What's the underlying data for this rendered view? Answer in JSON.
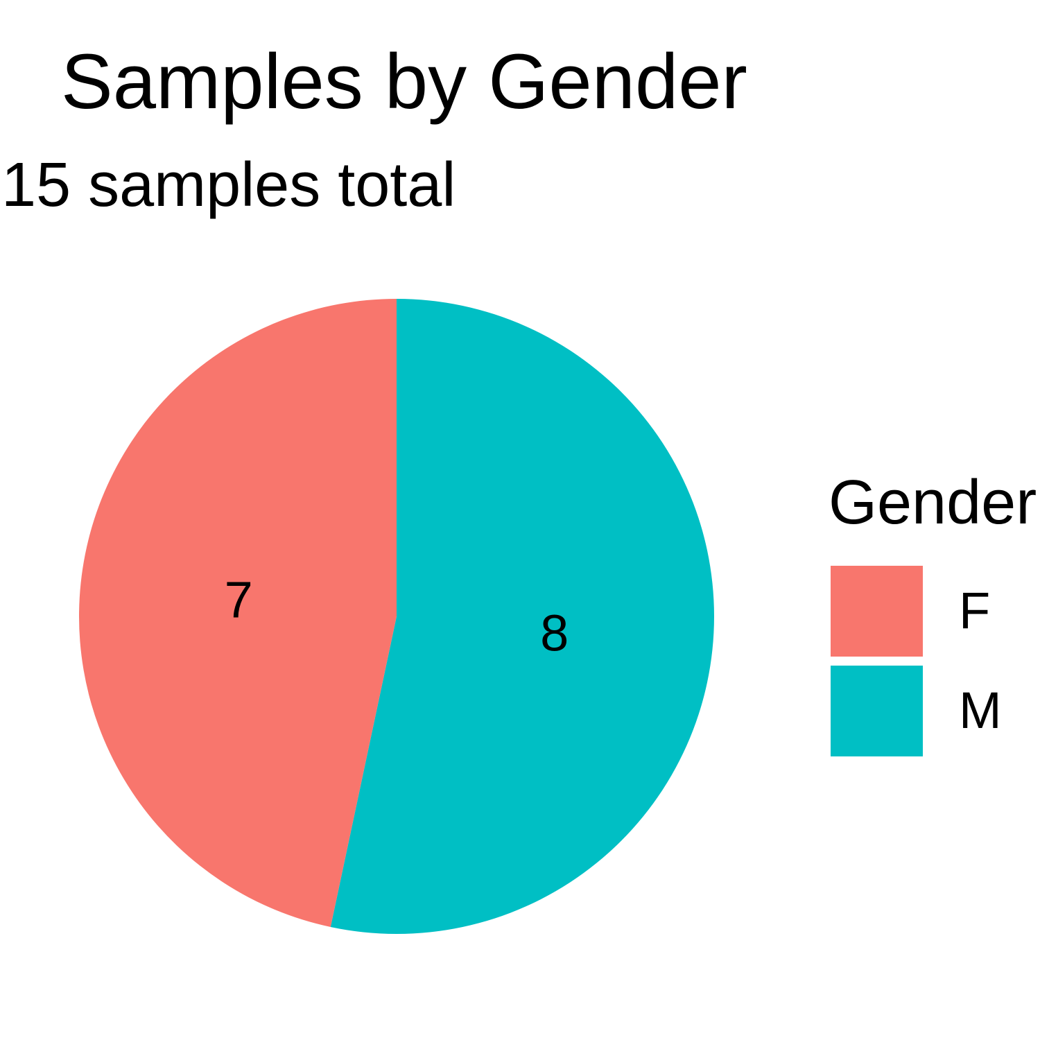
{
  "chart_data": {
    "type": "pie",
    "title": "Samples by Gender",
    "subtitle": "15 samples total",
    "legend_title": "Gender",
    "legend_position": "right",
    "slices": [
      {
        "label": "F",
        "value": 7,
        "color": "#F8766D"
      },
      {
        "label": "M",
        "value": 8,
        "color": "#00BFC4"
      }
    ]
  }
}
